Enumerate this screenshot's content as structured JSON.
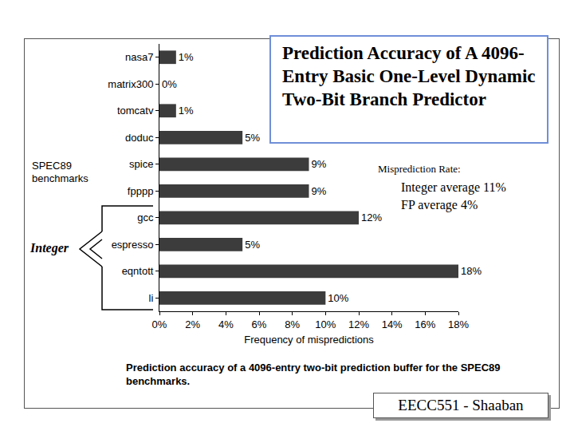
{
  "chart_data": {
    "type": "bar",
    "orientation": "horizontal",
    "title": "Prediction Accuracy of A 4096-Entry Basic One-Level Dynamic Two-Bit Branch Predictor",
    "x_label": "Frequency of mispredictions",
    "y_label": "SPEC89 benchmarks",
    "categories": [
      "nasa7",
      "matrix300",
      "tomcatv",
      "doduc",
      "spice",
      "fpppp",
      "gcc",
      "espresso",
      "eqntott",
      "li"
    ],
    "values": [
      1,
      0,
      1,
      5,
      9,
      9,
      12,
      5,
      18,
      10
    ],
    "value_labels": [
      "1%",
      "0%",
      "1%",
      "5%",
      "9%",
      "9%",
      "12%",
      "5%",
      "18%",
      "10%"
    ],
    "data_labels": true,
    "color": "#3c3c3c",
    "xlim": [
      0,
      18
    ],
    "xticks": [
      {
        "value": 0,
        "label": "0%"
      },
      {
        "value": 2,
        "label": "2%"
      },
      {
        "value": 4,
        "label": "4%"
      },
      {
        "value": 6,
        "label": "6%"
      },
      {
        "value": 8,
        "label": "8%"
      },
      {
        "value": 10,
        "label": "10%"
      },
      {
        "value": 12,
        "label": "12%"
      },
      {
        "value": 14,
        "label": "14%"
      },
      {
        "value": 16,
        "label": "16%"
      },
      {
        "value": 18,
        "label": "18%"
      }
    ],
    "grid": false,
    "annotations": [
      "Misprediction Rate:",
      "Integer average 11%",
      "FP average 4%",
      "Integer"
    ],
    "caption": "Prediction accuracy of a 4096-entry two-bit prediction buffer for the SPEC89 benchmarks.",
    "footer": "EECC551 - Shaaban"
  }
}
